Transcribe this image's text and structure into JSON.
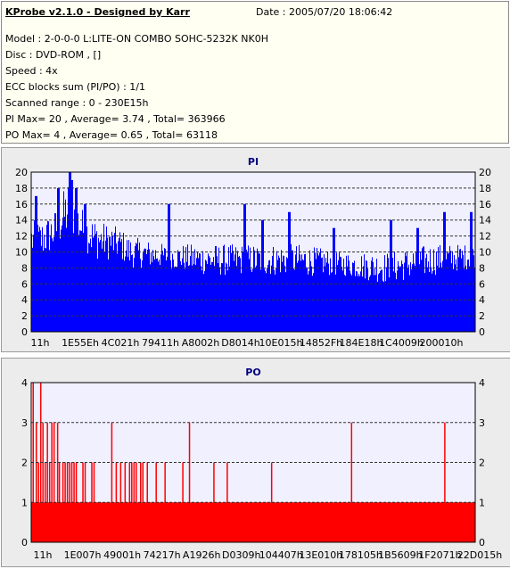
{
  "header": {
    "title": "KProbe v2.1.0 - Designed by Karr",
    "date": "Date : 2005/07/20 18:06:42",
    "lines": [
      "Model : 2-0-0-0 L:LITE-ON COMBO SOHC-5232K NK0H",
      "Disc : DVD-ROM ,  []",
      "Speed : 4x",
      "ECC blocks sum (PI/PO) : 1/1",
      "Scanned range : 0 - 230E15h",
      "PI Max= 20 , Average= 3.74 , Total= 363966",
      "PO Max= 4 , Average= 0.65 , Total= 63118"
    ]
  },
  "colors": {
    "pi": "#0000ff",
    "po": "#ff0000",
    "plot_bg": "#f0f0ff",
    "panel_bg": "#ececec",
    "title": "#000080"
  },
  "chart_data": [
    {
      "type": "bar",
      "title": "PI",
      "ylim": [
        0,
        20
      ],
      "yticks": [
        0,
        2,
        4,
        6,
        8,
        10,
        12,
        14,
        16,
        18,
        20
      ],
      "xtick_labels": [
        "11h",
        "1E55Eh",
        "4C021h",
        "79411h",
        "A8002h",
        "D8014h",
        "10E015h",
        "14852Fh",
        "184E18h",
        "1C4009h",
        "200010h"
      ],
      "grid": true,
      "summary": {
        "max": 20,
        "average": 3.74,
        "total": 363966
      },
      "envelope": {
        "x": [
          0,
          0.02,
          0.05,
          0.09,
          0.1,
          0.12,
          0.15,
          0.2,
          0.22,
          0.3,
          0.4,
          0.5,
          0.6,
          0.7,
          0.8,
          0.9,
          1.0
        ],
        "high": [
          14,
          14,
          15,
          20,
          17,
          15,
          14,
          13,
          12,
          11,
          11,
          11,
          11,
          10,
          10,
          11,
          11
        ],
        "low": [
          9,
          9,
          10,
          12,
          11,
          10,
          9,
          9,
          8,
          8,
          7,
          7,
          7,
          7,
          6,
          7,
          8
        ],
        "spikes": [
          [
            0.01,
            17
          ],
          [
            0.06,
            18
          ],
          [
            0.086,
            20
          ],
          [
            0.09,
            19
          ],
          [
            0.1,
            18
          ],
          [
            0.12,
            16
          ],
          [
            0.31,
            16
          ],
          [
            0.48,
            16
          ],
          [
            0.52,
            14
          ],
          [
            0.58,
            15
          ],
          [
            0.68,
            13
          ],
          [
            0.81,
            14
          ],
          [
            0.87,
            13
          ],
          [
            0.93,
            15
          ],
          [
            0.99,
            15
          ]
        ]
      }
    },
    {
      "type": "bar",
      "title": "PO",
      "ylim": [
        0,
        4
      ],
      "yticks": [
        0,
        1,
        2,
        3,
        4
      ],
      "xtick_labels": [
        "11h",
        "1E007h",
        "49001h",
        "74217h",
        "A1926h",
        "D0309h",
        "104407h",
        "13E010h",
        "178105h",
        "1B5609h",
        "1F2071h",
        "22D015h"
      ],
      "grid": true,
      "summary": {
        "max": 4,
        "average": 0.65,
        "total": 63118
      },
      "baseline": 1,
      "spikes": [
        [
          0.003,
          4
        ],
        [
          0.02,
          4
        ],
        [
          0.01,
          3
        ],
        [
          0.025,
          3
        ],
        [
          0.035,
          3
        ],
        [
          0.045,
          3
        ],
        [
          0.05,
          3
        ],
        [
          0.058,
          3
        ],
        [
          0.015,
          2
        ],
        [
          0.03,
          2
        ],
        [
          0.04,
          2
        ],
        [
          0.062,
          2
        ],
        [
          0.07,
          2
        ],
        [
          0.075,
          2
        ],
        [
          0.08,
          2
        ],
        [
          0.085,
          2
        ],
        [
          0.09,
          2
        ],
        [
          0.095,
          2
        ],
        [
          0.1,
          2
        ],
        [
          0.115,
          2
        ],
        [
          0.12,
          2
        ],
        [
          0.135,
          2
        ],
        [
          0.14,
          2
        ],
        [
          0.18,
          3
        ],
        [
          0.19,
          2
        ],
        [
          0.2,
          2
        ],
        [
          0.21,
          2
        ],
        [
          0.22,
          2
        ],
        [
          0.225,
          2
        ],
        [
          0.23,
          2
        ],
        [
          0.235,
          2
        ],
        [
          0.245,
          2
        ],
        [
          0.25,
          2
        ],
        [
          0.26,
          2
        ],
        [
          0.28,
          2
        ],
        [
          0.3,
          2
        ],
        [
          0.34,
          2
        ],
        [
          0.355,
          3
        ],
        [
          0.41,
          2
        ],
        [
          0.44,
          2
        ],
        [
          0.54,
          2
        ],
        [
          0.72,
          3
        ],
        [
          0.93,
          3
        ]
      ]
    }
  ]
}
